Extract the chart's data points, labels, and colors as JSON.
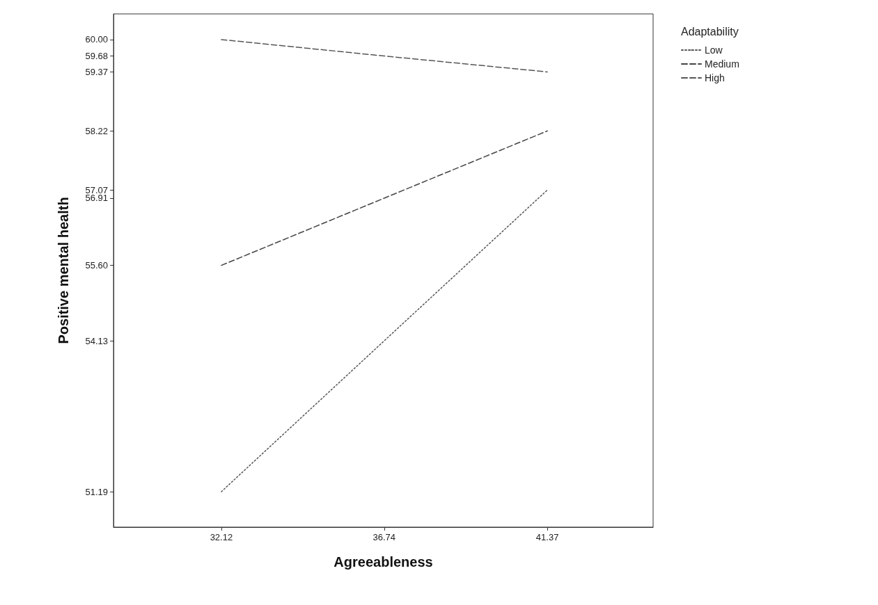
{
  "chart_data": {
    "type": "line",
    "xlabel": "Agreeableness",
    "ylabel": "Positive mental health",
    "legend_title": "Adaptability",
    "legend": "top right",
    "xlim": [
      29.06,
      44.37
    ],
    "xticks": [
      32.12,
      36.74,
      41.37
    ],
    "ylim": [
      50.5,
      60.5
    ],
    "yticks": [
      51.19,
      54.13,
      {
        "value": 55.6,
        "label": "55.60"
      },
      56.91,
      57.07,
      58.22,
      59.37,
      59.68,
      {
        "value": 60,
        "label": "60.00"
      }
    ],
    "grid": false,
    "marker": "none",
    "series": [
      {
        "name": "Low",
        "color": "#555555",
        "line_style": "dotted",
        "x": [
          32.12,
          36.74,
          41.37
        ],
        "values": [
          51.19,
          54.13,
          57.07
        ]
      },
      {
        "name": "Medium",
        "color": "#444444",
        "line_style": "dashed",
        "x": [
          32.12,
          36.74,
          41.37
        ],
        "values": [
          55.6,
          56.91,
          58.22
        ]
      },
      {
        "name": "High",
        "color": "#555555",
        "line_style": "dashed",
        "x": [
          32.12,
          36.74,
          41.37
        ],
        "values": [
          60.0,
          59.68,
          59.37
        ]
      }
    ]
  }
}
